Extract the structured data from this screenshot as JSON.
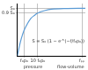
{
  "chart_data": {
    "type": "line",
    "x": [
      0,
      1,
      2,
      3,
      4,
      6,
      8,
      10,
      12,
      16,
      20,
      28,
      40
    ],
    "values": [
      0,
      0.17,
      0.32,
      0.44,
      0.54,
      0.68,
      0.79,
      0.85,
      0.9,
      0.95,
      0.98,
      0.995,
      1.0
    ],
    "color": "#5b9bd5",
    "xlim": [
      0,
      40
    ],
    "xticks": [
      {
        "value": 4,
        "label": "f₀p₀"
      },
      {
        "value": 12,
        "label": "10 f₀p₀"
      },
      {
        "value": 38,
        "label": "fₚₚ"
      }
    ],
    "ylim": [
      0,
      1.1
    ],
    "yticks": [
      {
        "value": 0.9,
        "label": "0.9 S₀"
      },
      {
        "value": 1,
        "label": "S₀"
      }
    ],
    "grid": true,
    "annotations": [
      "pressure",
      "flow-volume",
      "S = S₀ (1 − e^(−f/f₀p₀))"
    ]
  }
}
